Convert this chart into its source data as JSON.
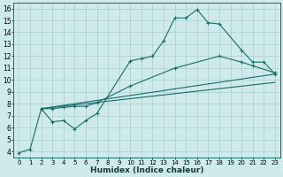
{
  "xlabel": "Humidex (Indice chaleur)",
  "xlim": [
    -0.5,
    23.5
  ],
  "ylim": [
    3.5,
    16.5
  ],
  "xticks": [
    0,
    1,
    2,
    3,
    4,
    5,
    6,
    7,
    8,
    9,
    10,
    11,
    12,
    13,
    14,
    15,
    16,
    17,
    18,
    19,
    20,
    21,
    22,
    23
  ],
  "yticks": [
    4,
    5,
    6,
    7,
    8,
    9,
    10,
    11,
    12,
    13,
    14,
    15,
    16
  ],
  "bg_color": "#ceeaea",
  "line_color": "#1a6b6b",
  "grid_color": "#aacece",
  "line1_x": [
    0,
    1,
    2,
    3,
    4,
    5,
    6,
    7,
    10,
    11,
    12,
    13,
    14,
    15,
    16,
    17,
    18,
    20,
    21,
    22,
    23
  ],
  "line1_y": [
    3.9,
    4.2,
    7.6,
    6.5,
    6.6,
    5.9,
    6.6,
    7.2,
    11.6,
    11.8,
    12.0,
    13.3,
    15.2,
    15.2,
    15.9,
    14.8,
    14.7,
    12.5,
    11.5,
    11.5,
    10.5
  ],
  "line2_x": [
    2,
    3,
    4,
    5,
    6,
    7,
    10,
    14,
    18,
    20,
    21,
    23
  ],
  "line2_y": [
    7.6,
    7.6,
    7.7,
    7.8,
    7.8,
    8.1,
    9.5,
    11.0,
    12.0,
    11.5,
    11.2,
    10.6
  ],
  "line3_x": [
    2,
    23
  ],
  "line3_y": [
    7.6,
    10.5
  ],
  "line4_x": [
    2,
    23
  ],
  "line4_y": [
    7.6,
    9.8
  ]
}
